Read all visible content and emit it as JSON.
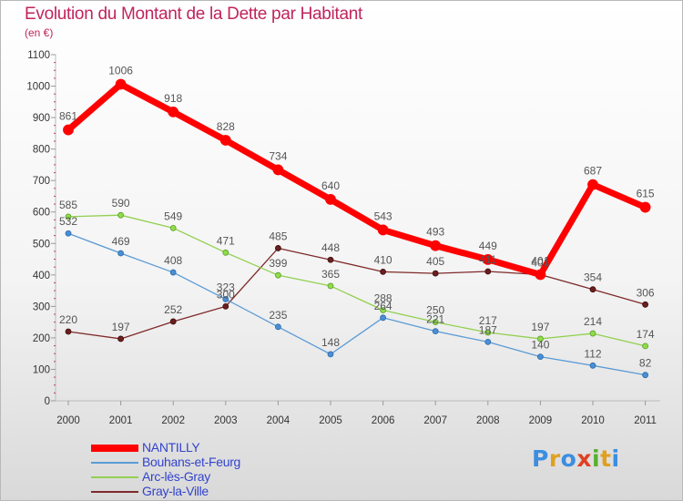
{
  "header": {
    "title": "Evolution du Montant de la Dette par Habitant",
    "subtitle": "(en €)"
  },
  "logo": {
    "text": "Proxiti"
  },
  "chart_data": {
    "type": "line",
    "title": "Evolution du Montant de la Dette par Habitant",
    "subtitle": "(en €)",
    "categories": [
      "2000",
      "2001",
      "2002",
      "2003",
      "2004",
      "2005",
      "2006",
      "2007",
      "2008",
      "2009",
      "2010",
      "2011"
    ],
    "ylim": [
      0,
      1100
    ],
    "y_ticks": [
      0,
      100,
      200,
      300,
      400,
      500,
      600,
      700,
      800,
      900,
      1000,
      1100
    ],
    "grid": false,
    "legend_position": "bottom-left",
    "series": [
      {
        "name": "NANTILLY",
        "color": "#ff0000",
        "values": [
          861,
          1006,
          918,
          828,
          734,
          640,
          543,
          493,
          449,
          401,
          687,
          615
        ]
      },
      {
        "name": "Bouhans-et-Feurg",
        "color": "#5b9bd5",
        "values": [
          532,
          469,
          408,
          323,
          235,
          148,
          264,
          221,
          187,
          140,
          112,
          82
        ]
      },
      {
        "name": "Arc-lès-Gray",
        "color": "#92d050",
        "values": [
          585,
          590,
          549,
          471,
          399,
          365,
          288,
          250,
          217,
          197,
          214,
          174
        ]
      },
      {
        "name": "Gray-la-Ville",
        "color": "#7f2a2a",
        "values": [
          220,
          197,
          252,
          300,
          485,
          448,
          410,
          405,
          411,
          401,
          354,
          306
        ]
      }
    ]
  }
}
